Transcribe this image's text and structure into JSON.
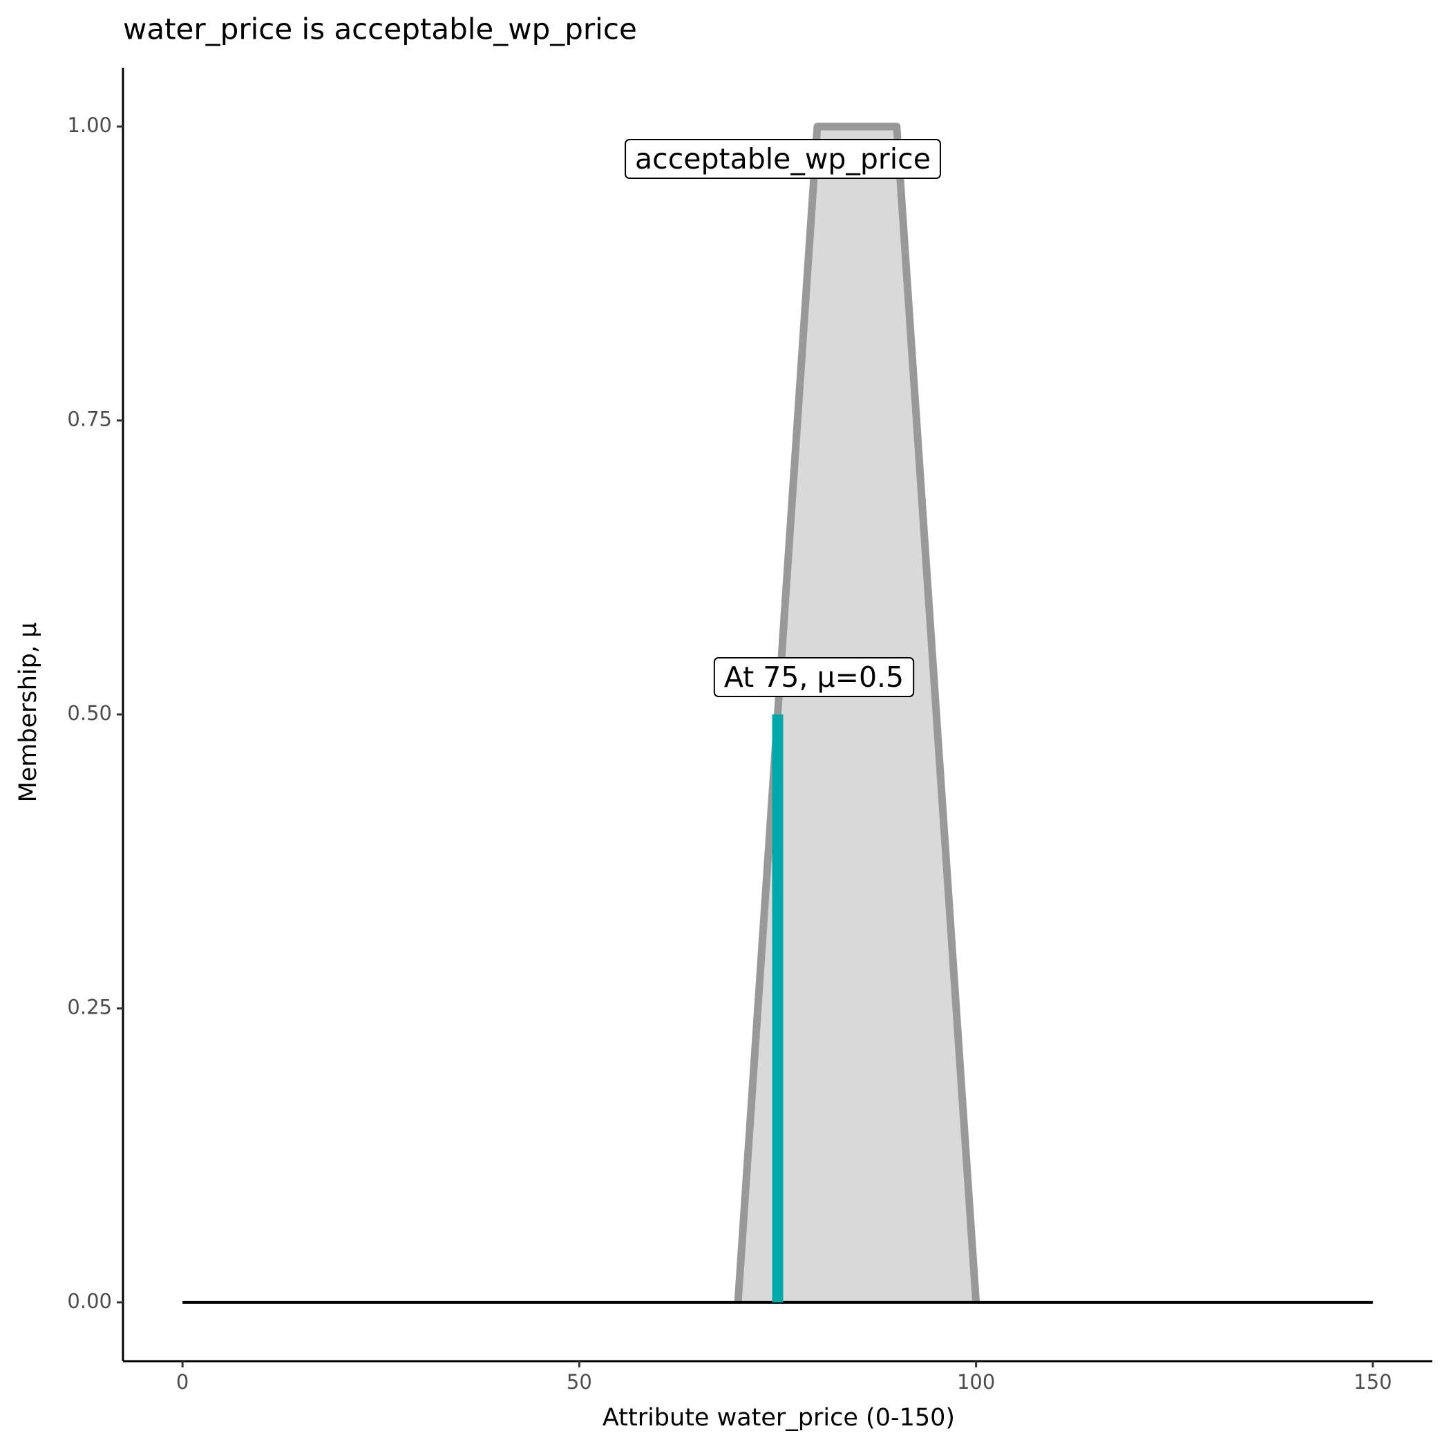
{
  "chart_data": {
    "type": "area",
    "title": "water_price is acceptable_wp_price",
    "x_label": "Attribute water_price (0-150)",
    "y_label": "Membership, μ",
    "xlim": [
      -7.5,
      157.5
    ],
    "ylim": [
      -0.05,
      1.05
    ],
    "xticks": [
      0,
      50,
      100,
      150
    ],
    "yticks": [
      {
        "value": 0,
        "label": "0.00"
      },
      {
        "value": 0.25,
        "label": "0.25"
      },
      {
        "value": 0.5,
        "label": "0.50"
      },
      {
        "value": 0.75,
        "label": "0.75"
      },
      {
        "value": 1,
        "label": "1.00"
      }
    ],
    "baseline": {
      "x": [
        0,
        150
      ],
      "values": [
        0,
        0
      ],
      "color": "#000000"
    },
    "series": [
      {
        "name": "acceptable_wp_price",
        "color": "#999999",
        "fill": "#d9d9d9",
        "x": [
          70,
          80,
          90,
          100
        ],
        "values": [
          0,
          1,
          1,
          0
        ]
      }
    ],
    "marker": {
      "x": 75,
      "values": [
        0,
        0.5
      ],
      "color": "#00a9a9",
      "label": "At 75, μ=0.5"
    }
  }
}
